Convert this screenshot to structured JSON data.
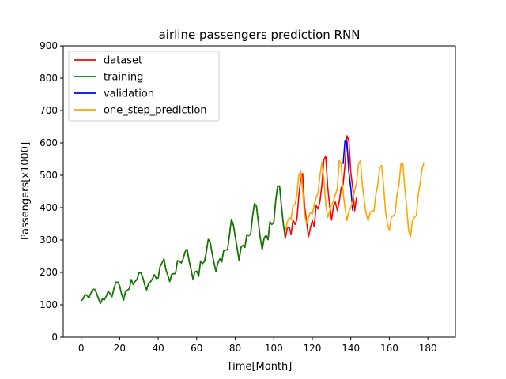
{
  "chart_data": {
    "type": "line",
    "title": "airline passengers prediction RNN",
    "xlabel": "Time[Month]",
    "ylabel": "Passengers[x1000]",
    "xlim": [
      -9.3,
      194.3
    ],
    "ylim": [
      0,
      900
    ],
    "xticks": [
      0,
      20,
      40,
      60,
      80,
      100,
      120,
      140,
      160,
      180
    ],
    "yticks": [
      0,
      100,
      200,
      300,
      400,
      500,
      600,
      700,
      800,
      900
    ],
    "legend_position": "top-left",
    "series": [
      {
        "name": "dataset",
        "color": "#ff0000",
        "x_start": 0,
        "values": [
          112,
          118,
          132,
          129,
          121,
          135,
          148,
          148,
          136,
          119,
          104,
          118,
          115,
          126,
          141,
          135,
          125,
          149,
          170,
          170,
          158,
          133,
          114,
          140,
          145,
          150,
          178,
          163,
          172,
          178,
          199,
          199,
          184,
          162,
          146,
          166,
          171,
          180,
          193,
          181,
          183,
          218,
          230,
          242,
          209,
          191,
          172,
          194,
          196,
          196,
          236,
          235,
          229,
          243,
          264,
          272,
          237,
          211,
          180,
          201,
          204,
          188,
          235,
          227,
          234,
          264,
          302,
          293,
          259,
          229,
          203,
          229,
          242,
          233,
          267,
          269,
          270,
          315,
          364,
          347,
          312,
          274,
          237,
          278,
          284,
          277,
          317,
          313,
          318,
          374,
          413,
          405,
          355,
          306,
          271,
          306,
          315,
          301,
          356,
          348,
          355,
          422,
          465,
          467,
          404,
          347,
          305,
          336,
          340,
          318,
          362,
          348,
          363,
          435,
          491,
          505,
          404,
          359,
          310,
          337,
          360,
          342,
          406,
          396,
          420,
          472,
          548,
          559,
          463,
          407,
          362,
          405,
          417,
          391,
          419,
          461,
          472,
          535,
          622,
          606,
          508,
          461,
          390,
          432
        ]
      },
      {
        "name": "training",
        "color": "#008000",
        "x_start": 0,
        "values": [
          112,
          118,
          132,
          129,
          121,
          135,
          148,
          148,
          136,
          119,
          104,
          118,
          115,
          126,
          141,
          135,
          125,
          149,
          170,
          170,
          158,
          133,
          114,
          140,
          145,
          150,
          178,
          163,
          172,
          178,
          199,
          199,
          184,
          162,
          146,
          166,
          171,
          180,
          193,
          181,
          183,
          218,
          230,
          242,
          209,
          191,
          172,
          194,
          196,
          196,
          236,
          235,
          229,
          243,
          264,
          272,
          237,
          211,
          180,
          201,
          204,
          188,
          235,
          227,
          234,
          264,
          302,
          293,
          259,
          229,
          203,
          229,
          242,
          233,
          267,
          269,
          270,
          315,
          364,
          347,
          312,
          274,
          237,
          278,
          284,
          277,
          317,
          313,
          318,
          374,
          413,
          405,
          355,
          306,
          271,
          306,
          315,
          301,
          356,
          348,
          355,
          422,
          465,
          467,
          404,
          347,
          305
        ]
      },
      {
        "name": "validation",
        "color": "#0000ff",
        "x_start": 136,
        "values": [
          535,
          608,
          604,
          508,
          461,
          390
        ]
      },
      {
        "name": "one_step_prediction",
        "color": "#ffa500",
        "x_start": 106,
        "values": [
          330,
          355,
          370,
          365,
          405,
          410,
          440,
          500,
          515,
          450,
          380,
          350,
          370,
          385,
          380,
          410,
          430,
          445,
          500,
          540,
          490,
          410,
          370,
          390,
          410,
          420,
          440,
          460,
          545,
          535,
          445,
          400,
          360,
          390,
          400,
          420,
          455,
          475,
          535,
          545,
          470,
          420,
          380,
          360,
          385,
          390,
          390,
          440,
          470,
          525,
          530,
          470,
          390,
          350,
          330,
          370,
          375,
          380,
          440,
          470,
          535,
          535,
          465,
          400,
          330,
          310,
          360,
          370,
          375,
          440,
          475,
          520,
          540
        ]
      }
    ]
  }
}
